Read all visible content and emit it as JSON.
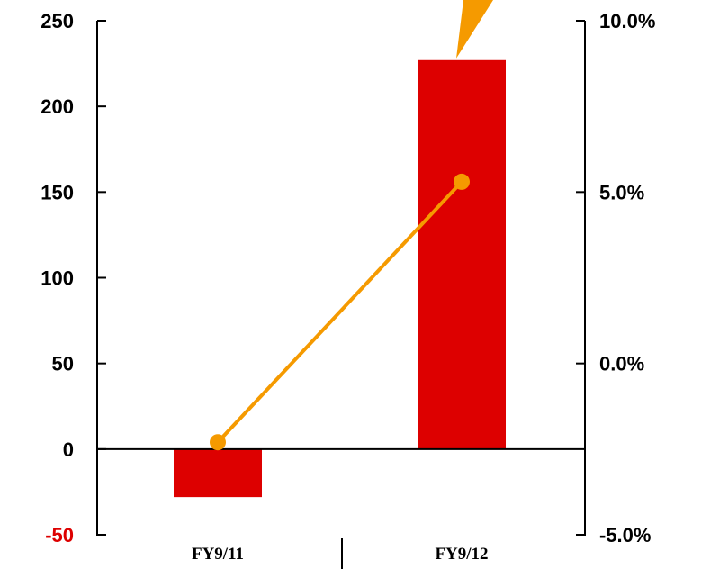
{
  "chart_data": {
    "type": "bar",
    "categories": [
      "FY9/11",
      "FY9/12"
    ],
    "series": [
      {
        "type": "bar",
        "axis": "left",
        "values": [
          -28,
          227
        ],
        "color": "#dd0000"
      },
      {
        "type": "line",
        "axis": "right",
        "values": [
          -2.3,
          5.3
        ],
        "color": "#f59a00"
      }
    ],
    "left_axis": {
      "ylim": [
        -50,
        250
      ],
      "ticks": [
        {
          "value": 250,
          "label": "250",
          "color": "#000000"
        },
        {
          "value": 200,
          "label": "200",
          "color": "#000000"
        },
        {
          "value": 150,
          "label": "150",
          "color": "#000000"
        },
        {
          "value": 100,
          "label": "100",
          "color": "#000000"
        },
        {
          "value": 50,
          "label": "50",
          "color": "#000000"
        },
        {
          "value": 0,
          "label": "0",
          "color": "#000000"
        },
        {
          "value": -50,
          "label": "-50",
          "color": "#dd0000"
        }
      ]
    },
    "right_axis": {
      "ylim": [
        -5.0,
        10.0
      ],
      "ticks": [
        {
          "value": 10.0,
          "label": "10.0%"
        },
        {
          "value": 5.0,
          "label": "5.0%"
        },
        {
          "value": 0.0,
          "label": "0.0%"
        },
        {
          "value": -5.0,
          "label": "-5.0%"
        }
      ]
    },
    "grid": false,
    "legend": "none",
    "callout_color": "#f59a00"
  }
}
